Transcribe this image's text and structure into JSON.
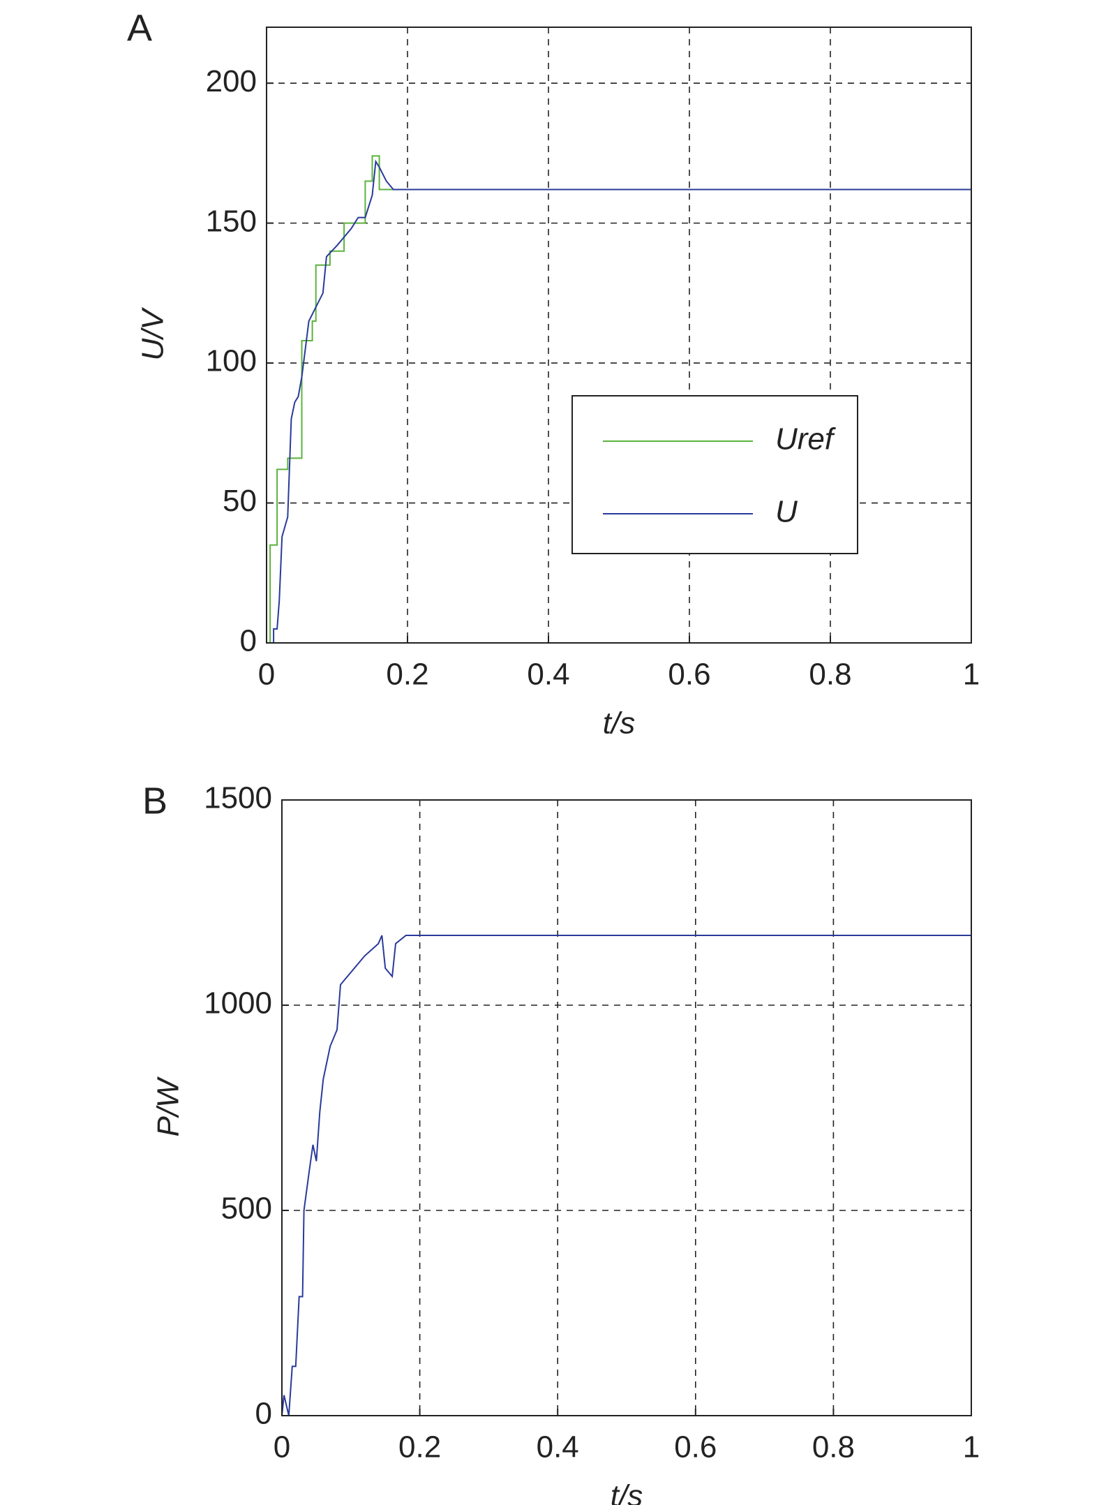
{
  "chart_data": [
    {
      "type": "line",
      "panel": "A",
      "xlabel": "t/s",
      "ylabel": "U/V",
      "xlim": [
        0,
        1
      ],
      "ylim": [
        0,
        220
      ],
      "xticks": [
        0,
        0.2,
        0.4,
        0.6,
        0.8,
        1
      ],
      "yticks": [
        0,
        50,
        100,
        150,
        200
      ],
      "grid": true,
      "legend": "right",
      "series": [
        {
          "name": "Uref",
          "color": "#5bb33c",
          "x": [
            0,
            0.005,
            0.005,
            0.015,
            0.015,
            0.03,
            0.03,
            0.05,
            0.05,
            0.065,
            0.065,
            0.07,
            0.07,
            0.09,
            0.09,
            0.11,
            0.11,
            0.14,
            0.14,
            0.15,
            0.15,
            0.16,
            0.16,
            1
          ],
          "values": [
            0,
            0,
            35,
            35,
            62,
            62,
            66,
            66,
            108,
            108,
            115,
            115,
            135,
            135,
            140,
            140,
            150,
            150,
            165,
            165,
            174,
            174,
            162,
            162
          ]
        },
        {
          "name": "U",
          "color": "#2a3a9a",
          "x": [
            0,
            0.01,
            0.01,
            0.015,
            0.018,
            0.022,
            0.03,
            0.035,
            0.04,
            0.045,
            0.05,
            0.06,
            0.07,
            0.08,
            0.085,
            0.1,
            0.12,
            0.13,
            0.14,
            0.15,
            0.155,
            0.16,
            0.17,
            0.18,
            1
          ],
          "values": [
            0,
            0,
            5,
            5,
            15,
            38,
            45,
            80,
            86,
            88,
            95,
            115,
            120,
            125,
            138,
            142,
            148,
            152,
            152,
            160,
            172,
            170,
            165,
            162,
            162
          ]
        }
      ]
    },
    {
      "type": "line",
      "panel": "B",
      "xlabel": "t/s",
      "ylabel": "P/W",
      "xlim": [
        0,
        1
      ],
      "ylim": [
        0,
        1500
      ],
      "xticks": [
        0,
        0.2,
        0.4,
        0.6,
        0.8,
        1
      ],
      "yticks": [
        0,
        500,
        1000,
        1500
      ],
      "grid": true,
      "series": [
        {
          "color": "#2a3a9a",
          "x": [
            0,
            0.003,
            0.01,
            0.015,
            0.02,
            0.025,
            0.03,
            0.032,
            0.04,
            0.045,
            0.05,
            0.055,
            0.06,
            0.07,
            0.08,
            0.085,
            0.1,
            0.12,
            0.14,
            0.145,
            0.15,
            0.16,
            0.165,
            0.18,
            1
          ],
          "values": [
            0,
            50,
            0,
            120,
            120,
            290,
            290,
            500,
            600,
            660,
            620,
            740,
            820,
            900,
            940,
            1050,
            1080,
            1120,
            1150,
            1170,
            1090,
            1070,
            1150,
            1170,
            1170
          ]
        }
      ]
    }
  ]
}
